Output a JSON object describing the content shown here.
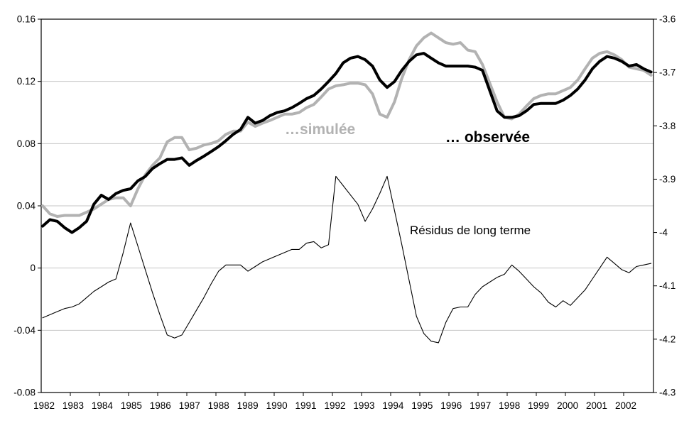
{
  "chart_data": {
    "type": "line",
    "title": "",
    "x_axis": {
      "unit": "year",
      "frequency": "quarterly",
      "start_year": 1982,
      "tick_labels": [
        "1982",
        "1983",
        "1984",
        "1985",
        "1986",
        "1987",
        "1988",
        "1989",
        "1990",
        "1991",
        "1992",
        "1993",
        "1994",
        "1995",
        "1996",
        "1997",
        "1998",
        "1999",
        "2000",
        "2001",
        "2002"
      ]
    },
    "left_axis": {
      "tick_labels": [
        "0.16",
        "0.12",
        "0.08",
        "0.04",
        "0",
        "-0.04",
        "-0.08"
      ],
      "tick_values": [
        0.16,
        0.12,
        0.08,
        0.04,
        0,
        -0.04,
        -0.08
      ],
      "range": [
        -0.08,
        0.16
      ],
      "gridlines_at": [
        0.12,
        0.08,
        0.04,
        0,
        -0.04
      ]
    },
    "right_axis": {
      "tick_labels": [
        "-3.6",
        "-3.7",
        "-3.8",
        "-3.9",
        "-4",
        "-4.1",
        "-4.2",
        "-4.3"
      ],
      "tick_values": [
        -3.6,
        -3.7,
        -3.8,
        -3.9,
        -4.0,
        -4.1,
        -4.2,
        -4.3
      ],
      "range": [
        -4.3,
        -3.6
      ]
    },
    "grid": "horizontal only, light gray, at left-axis interior ticks",
    "legend_position": "floating text annotations inside plot",
    "colors": {
      "observee": "#000000",
      "simulee": "#b2b2b2",
      "residus": "#000000",
      "gridline": "#c6c6c6",
      "axis": "#000000"
    },
    "annotations": [
      {
        "id": "simulee-label",
        "text": "…simulée"
      },
      {
        "id": "observee-label",
        "text": "… observée"
      },
      {
        "id": "residus-label",
        "text": "Résidus de long terme"
      }
    ],
    "series": [
      {
        "name": "observee",
        "label": "… observée",
        "axis": "right",
        "color": "#000000",
        "stroke_width": 4,
        "values": [
          -3.988,
          -3.976,
          -3.979,
          -3.991,
          -4.0,
          -3.991,
          -3.979,
          -3.947,
          -3.93,
          -3.938,
          -3.927,
          -3.921,
          -3.918,
          -3.903,
          -3.895,
          -3.88,
          -3.871,
          -3.863,
          -3.863,
          -3.86,
          -3.874,
          -3.865,
          -3.857,
          -3.848,
          -3.839,
          -3.828,
          -3.816,
          -3.807,
          -3.784,
          -3.795,
          -3.79,
          -3.781,
          -3.775,
          -3.772,
          -3.766,
          -3.758,
          -3.749,
          -3.743,
          -3.731,
          -3.717,
          -3.702,
          -3.682,
          -3.673,
          -3.67,
          -3.676,
          -3.688,
          -3.714,
          -3.728,
          -3.717,
          -3.696,
          -3.679,
          -3.667,
          -3.664,
          -3.673,
          -3.682,
          -3.688,
          -3.688,
          -3.688,
          -3.688,
          -3.69,
          -3.696,
          -3.734,
          -3.772,
          -3.784,
          -3.784,
          -3.781,
          -3.772,
          -3.76,
          -3.758,
          -3.758,
          -3.758,
          -3.752,
          -3.743,
          -3.731,
          -3.714,
          -3.693,
          -3.679,
          -3.67,
          -3.673,
          -3.679,
          -3.688,
          -3.685,
          -3.693,
          -3.699
        ]
      },
      {
        "name": "simulee",
        "label": "…simulée",
        "axis": "right",
        "color": "#b2b2b2",
        "stroke_width": 4,
        "values": [
          -3.95,
          -3.965,
          -3.97,
          -3.968,
          -3.968,
          -3.968,
          -3.962,
          -3.956,
          -3.947,
          -3.938,
          -3.935,
          -3.935,
          -3.95,
          -3.918,
          -3.892,
          -3.874,
          -3.86,
          -3.83,
          -3.822,
          -3.822,
          -3.845,
          -3.842,
          -3.836,
          -3.833,
          -3.828,
          -3.816,
          -3.81,
          -3.81,
          -3.793,
          -3.801,
          -3.795,
          -3.79,
          -3.784,
          -3.778,
          -3.778,
          -3.775,
          -3.766,
          -3.76,
          -3.746,
          -3.731,
          -3.725,
          -3.723,
          -3.72,
          -3.72,
          -3.723,
          -3.74,
          -3.778,
          -3.784,
          -3.755,
          -3.711,
          -3.676,
          -3.65,
          -3.635,
          -3.626,
          -3.635,
          -3.644,
          -3.647,
          -3.644,
          -3.658,
          -3.661,
          -3.685,
          -3.72,
          -3.755,
          -3.784,
          -3.787,
          -3.778,
          -3.763,
          -3.749,
          -3.743,
          -3.74,
          -3.74,
          -3.734,
          -3.728,
          -3.714,
          -3.693,
          -3.673,
          -3.664,
          -3.661,
          -3.667,
          -3.676,
          -3.69,
          -3.693,
          -3.696,
          -3.705
        ]
      },
      {
        "name": "residus",
        "label": "Résidus de long terme",
        "axis": "left",
        "color": "#000000",
        "stroke_width": 1.1,
        "values": [
          -0.032,
          -0.03,
          -0.028,
          -0.026,
          -0.025,
          -0.023,
          -0.019,
          -0.015,
          -0.012,
          -0.009,
          -0.007,
          0.01,
          0.029,
          0.014,
          -0.001,
          -0.016,
          -0.03,
          -0.043,
          -0.045,
          -0.043,
          -0.035,
          -0.027,
          -0.019,
          -0.01,
          -0.002,
          0.002,
          0.002,
          0.002,
          -0.002,
          0.001,
          0.004,
          0.006,
          0.008,
          0.01,
          0.012,
          0.012,
          0.016,
          0.017,
          0.013,
          0.015,
          0.059,
          0.053,
          0.047,
          0.041,
          0.03,
          0.038,
          0.048,
          0.059,
          0.037,
          0.015,
          -0.008,
          -0.031,
          -0.042,
          -0.047,
          -0.048,
          -0.035,
          -0.026,
          -0.025,
          -0.025,
          -0.017,
          -0.012,
          -0.009,
          -0.006,
          -0.004,
          0.002,
          -0.002,
          -0.007,
          -0.012,
          -0.016,
          -0.022,
          -0.025,
          -0.021,
          -0.024,
          -0.019,
          -0.014,
          -0.007,
          0.0,
          0.007,
          0.003,
          -0.001,
          -0.003,
          0.001,
          0.002,
          0.003
        ]
      }
    ]
  }
}
